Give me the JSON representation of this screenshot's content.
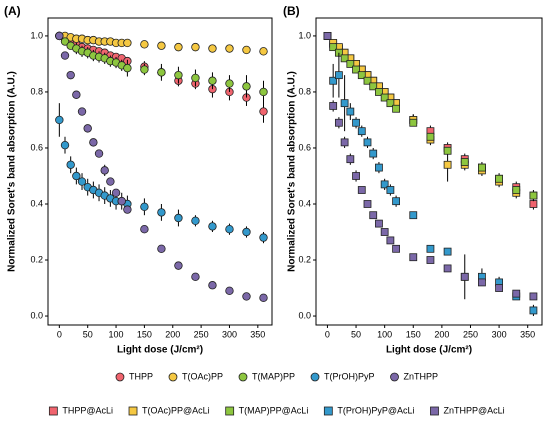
{
  "chart_data": [
    {
      "type": "scatter",
      "title": "(A)",
      "x_label": "Light dose (J/cm²)",
      "y_label": "Normalized Soret's band absorption (A.U.)",
      "marker": "circle",
      "legend": "bottom",
      "x": [
        0,
        10,
        20,
        30,
        40,
        50,
        60,
        70,
        80,
        90,
        100,
        110,
        120,
        150,
        180,
        210,
        240,
        270,
        300,
        330,
        360
      ],
      "xlim": [
        -20,
        375
      ],
      "xticks": [
        0,
        50,
        100,
        150,
        200,
        250,
        300,
        350
      ],
      "ylim": [
        -0.032,
        1.064
      ],
      "yticks": [
        {
          "value": 0,
          "label": "0.0"
        },
        0.2,
        0.4,
        0.6,
        0.8,
        {
          "value": 1,
          "label": "1.0"
        }
      ],
      "series": [
        {
          "name": "THPP",
          "color": "#f0646e",
          "values": [
            1.0,
            0.99,
            0.98,
            0.97,
            0.96,
            0.955,
            0.95,
            0.945,
            0.94,
            0.93,
            0.925,
            0.92,
            0.91,
            0.89,
            0.87,
            0.84,
            0.83,
            0.81,
            0.8,
            0.78,
            0.73
          ],
          "errors": [
            0,
            0.01,
            0.01,
            0.01,
            0.01,
            0.01,
            0.01,
            0.01,
            0.01,
            0.01,
            0.01,
            0.01,
            0.01,
            0.02,
            0.03,
            0.02,
            0.02,
            0.03,
            0.03,
            0.03,
            0.04
          ]
        },
        {
          "name": "T(OAc)PP",
          "color": "#f5c842",
          "values": [
            1.0,
            1.0,
            0.995,
            0.99,
            0.99,
            0.985,
            0.985,
            0.98,
            0.98,
            0.98,
            0.975,
            0.975,
            0.975,
            0.97,
            0.965,
            0.96,
            0.96,
            0.955,
            0.955,
            0.95,
            0.945
          ],
          "errors": [
            0,
            0,
            0,
            0,
            0,
            0,
            0,
            0,
            0,
            0,
            0,
            0,
            0,
            0,
            0,
            0,
            0,
            0,
            0,
            0,
            0
          ]
        },
        {
          "name": "T(MAP)PP",
          "color": "#8dc63f",
          "values": [
            1.0,
            0.98,
            0.965,
            0.955,
            0.945,
            0.94,
            0.93,
            0.925,
            0.92,
            0.91,
            0.905,
            0.895,
            0.885,
            0.88,
            0.87,
            0.86,
            0.85,
            0.84,
            0.83,
            0.82,
            0.8
          ],
          "errors": [
            0,
            0.01,
            0.01,
            0.02,
            0.02,
            0.02,
            0.02,
            0.02,
            0.02,
            0.02,
            0.02,
            0.02,
            0.03,
            0.02,
            0.02,
            0.03,
            0.03,
            0.03,
            0.03,
            0.04,
            0.04
          ]
        },
        {
          "name": "T(PrOH)PyP",
          "color": "#3399cc",
          "values": [
            0.7,
            0.61,
            0.54,
            0.5,
            0.48,
            0.46,
            0.45,
            0.44,
            0.43,
            0.42,
            0.41,
            0.41,
            0.4,
            0.39,
            0.37,
            0.35,
            0.34,
            0.32,
            0.31,
            0.3,
            0.28
          ],
          "errors": [
            0.06,
            0.03,
            0.03,
            0.03,
            0.03,
            0.03,
            0.03,
            0.03,
            0.03,
            0.03,
            0.03,
            0.03,
            0.03,
            0.03,
            0.03,
            0.03,
            0.02,
            0.02,
            0.02,
            0.02,
            0.02
          ]
        },
        {
          "name": "ZnTHPP",
          "color": "#7b68a8",
          "values": [
            1.0,
            0.93,
            0.86,
            0.79,
            0.73,
            0.67,
            0.62,
            0.58,
            0.52,
            0.48,
            0.44,
            0.41,
            0.38,
            0.31,
            0.24,
            0.18,
            0.14,
            0.11,
            0.09,
            0.07,
            0.065
          ],
          "errors": [
            0,
            0.01,
            0.01,
            0.01,
            0.01,
            0.01,
            0.01,
            0.01,
            0.02,
            0.01,
            0.01,
            0.01,
            0.01,
            0.01,
            0.01,
            0.01,
            0.01,
            0.01,
            0.01,
            0.01,
            0.01
          ]
        }
      ]
    },
    {
      "type": "scatter",
      "title": "(B)",
      "x_label": "Light dose (J/cm²)",
      "y_label": "Normalized Soret's band absorption (A.U.)",
      "marker": "square",
      "legend": "bottom",
      "x": [
        0,
        10,
        20,
        30,
        40,
        50,
        60,
        70,
        80,
        90,
        100,
        110,
        120,
        150,
        180,
        210,
        240,
        270,
        300,
        330,
        360
      ],
      "xlim": [
        -20,
        375
      ],
      "xticks": [
        0,
        50,
        100,
        150,
        200,
        250,
        300,
        350
      ],
      "ylim": [
        -0.032,
        1.064
      ],
      "yticks": [
        {
          "value": 0,
          "label": "0.0"
        },
        0.2,
        0.4,
        0.6,
        0.8,
        {
          "value": 1,
          "label": "1.0"
        }
      ],
      "series": [
        {
          "name": "THPP@AcLi",
          "color": "#f0646e",
          "values": [
            1.0,
            0.97,
            0.955,
            0.94,
            0.92,
            0.9,
            0.88,
            0.86,
            0.84,
            0.82,
            0.8,
            0.78,
            0.76,
            0.7,
            0.66,
            0.6,
            0.56,
            0.53,
            0.49,
            0.46,
            0.4
          ],
          "errors": [
            0,
            0.01,
            0.01,
            0.01,
            0.01,
            0.01,
            0.01,
            0.01,
            0.01,
            0.01,
            0.01,
            0.01,
            0.01,
            0.02,
            0.02,
            0.02,
            0.02,
            0.02,
            0.02,
            0.02,
            0.02
          ]
        },
        {
          "name": "T(OAc)PP@AcLi",
          "color": "#f5c842",
          "values": [
            1.0,
            0.975,
            0.96,
            0.94,
            0.92,
            0.9,
            0.88,
            0.86,
            0.84,
            0.82,
            0.8,
            0.78,
            0.76,
            0.7,
            0.63,
            0.54,
            0.54,
            0.52,
            0.48,
            0.44,
            0.43
          ],
          "errors": [
            0,
            0.01,
            0.01,
            0.01,
            0.01,
            0.01,
            0.01,
            0.01,
            0.01,
            0.01,
            0.01,
            0.01,
            0.01,
            0.02,
            0.02,
            0.06,
            0.02,
            0.02,
            0.02,
            0.02,
            0.02
          ]
        },
        {
          "name": "T(MAP)PP@AcLi",
          "color": "#8dc63f",
          "values": [
            1.0,
            0.96,
            0.94,
            0.92,
            0.9,
            0.88,
            0.86,
            0.84,
            0.82,
            0.8,
            0.78,
            0.76,
            0.74,
            0.69,
            0.64,
            0.59,
            0.55,
            0.53,
            0.49,
            0.45,
            0.43
          ],
          "errors": [
            0,
            0.01,
            0.01,
            0.01,
            0.01,
            0.01,
            0.01,
            0.01,
            0.01,
            0.01,
            0.01,
            0.01,
            0.01,
            0.01,
            0.01,
            0.01,
            0.01,
            0.01,
            0.01,
            0.01,
            0.01
          ]
        },
        {
          "name": "T(PrOH)PyP@AcLi",
          "color": "#3399cc",
          "values": [
            1.0,
            0.84,
            0.86,
            0.76,
            0.73,
            0.69,
            0.66,
            0.62,
            0.58,
            0.53,
            0.47,
            0.45,
            0.41,
            0.36,
            0.24,
            0.23,
            0.14,
            0.14,
            0.12,
            0.07,
            0.02
          ],
          "errors": [
            0,
            0.06,
            0.08,
            0.1,
            0.03,
            0.02,
            0.02,
            0.02,
            0.02,
            0.02,
            0.02,
            0.02,
            0.02,
            0.01,
            0.01,
            0.01,
            0.08,
            0.03,
            0.02,
            0.01,
            0.02
          ]
        },
        {
          "name": "ZnTHPP@AcLi",
          "color": "#7b68a8",
          "values": [
            1.0,
            0.75,
            0.69,
            0.62,
            0.56,
            0.5,
            0.45,
            0.4,
            0.36,
            0.33,
            0.3,
            0.27,
            0.24,
            0.21,
            0.2,
            0.17,
            0.14,
            0.12,
            0.1,
            0.08,
            0.07
          ],
          "errors": [
            0,
            0.02,
            0.02,
            0.02,
            0.02,
            0.02,
            0.01,
            0.01,
            0.01,
            0.01,
            0.01,
            0.01,
            0.01,
            0.01,
            0.01,
            0.01,
            0.01,
            0.01,
            0.01,
            0.01,
            0.01
          ]
        }
      ]
    }
  ]
}
